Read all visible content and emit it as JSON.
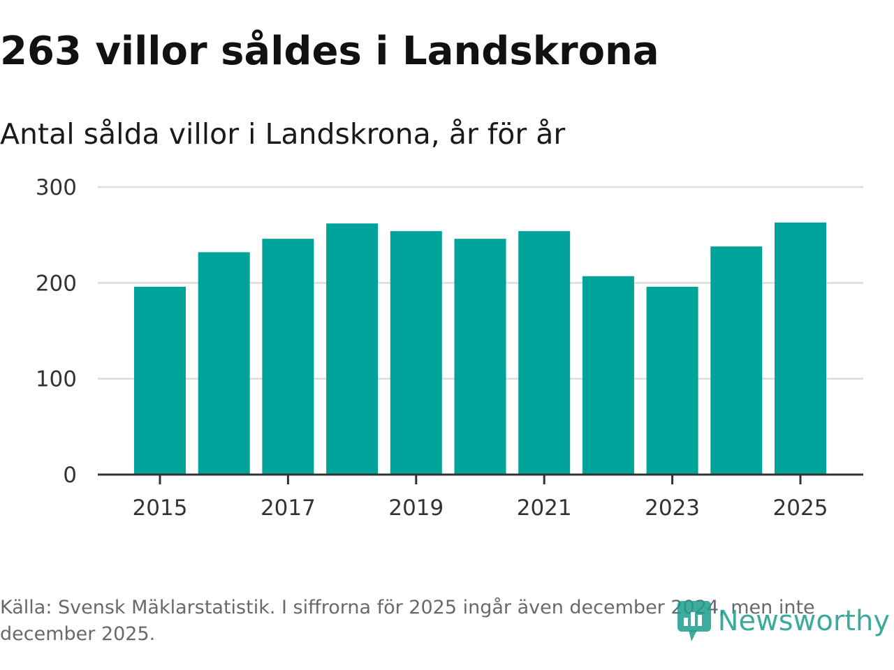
{
  "title": "263 villor såldes i Landskrona",
  "subtitle": "Antal sålda villor i Landskrona, år för år",
  "source": "Källa: Svensk Mäklarstatistik. I siffrorna för 2025 ingår även december 2024, men inte december 2025.",
  "logo_text": "Newsworthy",
  "colors": {
    "bar": "#00a39a",
    "grid": "#dcdcdc",
    "axis": "#333333",
    "logo": "#1c9c8c"
  },
  "chart_data": {
    "type": "bar",
    "title": "263 villor såldes i Landskrona",
    "subtitle": "Antal sålda villor i Landskrona, år för år",
    "xlabel": "",
    "ylabel": "",
    "categories": [
      "2015",
      "2016",
      "2017",
      "2018",
      "2019",
      "2020",
      "2021",
      "2022",
      "2023",
      "2024",
      "2025"
    ],
    "values": [
      196,
      232,
      246,
      262,
      254,
      246,
      254,
      207,
      196,
      238,
      263
    ],
    "ylim": [
      0,
      300
    ],
    "y_ticks": [
      "0",
      "100",
      "200",
      "300"
    ],
    "y_tick_values": [
      0,
      100,
      200,
      300
    ],
    "x_tick_labels": [
      "2015",
      "2017",
      "2019",
      "2021",
      "2023",
      "2025"
    ],
    "grid": true,
    "legend": "none"
  }
}
